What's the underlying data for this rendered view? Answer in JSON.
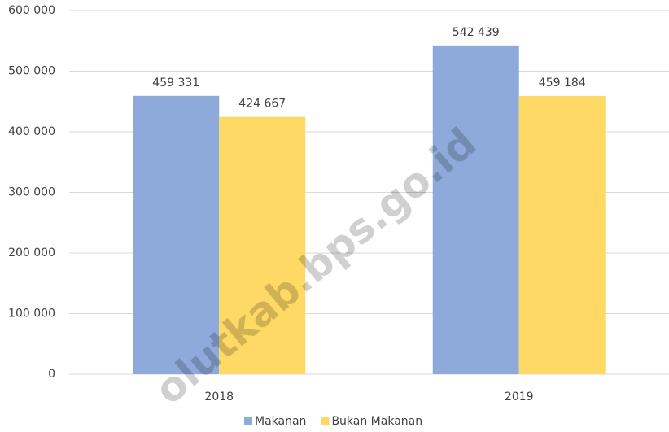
{
  "chart_data": {
    "type": "bar",
    "categories": [
      "2018",
      "2019"
    ],
    "series": [
      {
        "name": "Makanan",
        "color": "#8eaadb",
        "values": [
          459331,
          542439
        ],
        "value_labels": [
          "459 331",
          "542 439"
        ]
      },
      {
        "name": "Bukan Makanan",
        "color": "#ffd966",
        "values": [
          424667,
          459184
        ],
        "value_labels": [
          "424 667",
          "459 184"
        ]
      }
    ],
    "ylim": [
      0,
      600000
    ],
    "yticks": [
      0,
      {
        "value": 100000,
        "label": "100 000"
      },
      {
        "value": 200000,
        "label": "200 000"
      },
      {
        "value": 300000,
        "label": "300 000"
      },
      {
        "value": 400000,
        "label": "400 000"
      },
      {
        "value": 500000,
        "label": "500 000"
      },
      {
        "value": 600000,
        "label": "600 000"
      }
    ],
    "grid": true,
    "legend": "bottom",
    "watermark": "olutkab.bps.go.id"
  }
}
